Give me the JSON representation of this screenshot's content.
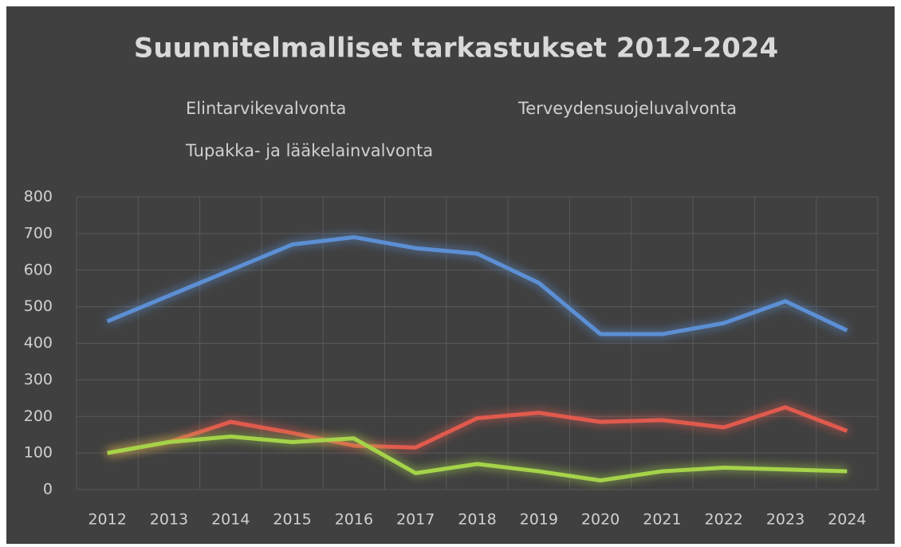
{
  "chart_data": {
    "type": "line",
    "title": "Suunnitelmalliset tarkastukset 2012-2024",
    "categories": [
      "2012",
      "2013",
      "2014",
      "2015",
      "2016",
      "2017",
      "2018",
      "2019",
      "2020",
      "2021",
      "2022",
      "2023",
      "2024"
    ],
    "series": [
      {
        "name": "Elintarvikevalvonta",
        "color": "#5b8fd4",
        "values": [
          460,
          530,
          600,
          670,
          690,
          660,
          645,
          565,
          425,
          425,
          455,
          515,
          435
        ]
      },
      {
        "name": "Terveydensuojeluvalvonta",
        "color": "#e05a4e",
        "values": [
          100,
          130,
          185,
          155,
          120,
          115,
          195,
          210,
          185,
          190,
          170,
          225,
          160
        ]
      },
      {
        "name": "Tupakka- ja lääkelainvalvonta",
        "color": "#a5d34a",
        "values": [
          100,
          130,
          145,
          130,
          140,
          45,
          70,
          50,
          25,
          50,
          60,
          55,
          50
        ]
      }
    ],
    "ylim": [
      0,
      800
    ],
    "yticks": [
      0,
      100,
      200,
      300,
      400,
      500,
      600,
      700,
      800
    ],
    "grid": true
  }
}
